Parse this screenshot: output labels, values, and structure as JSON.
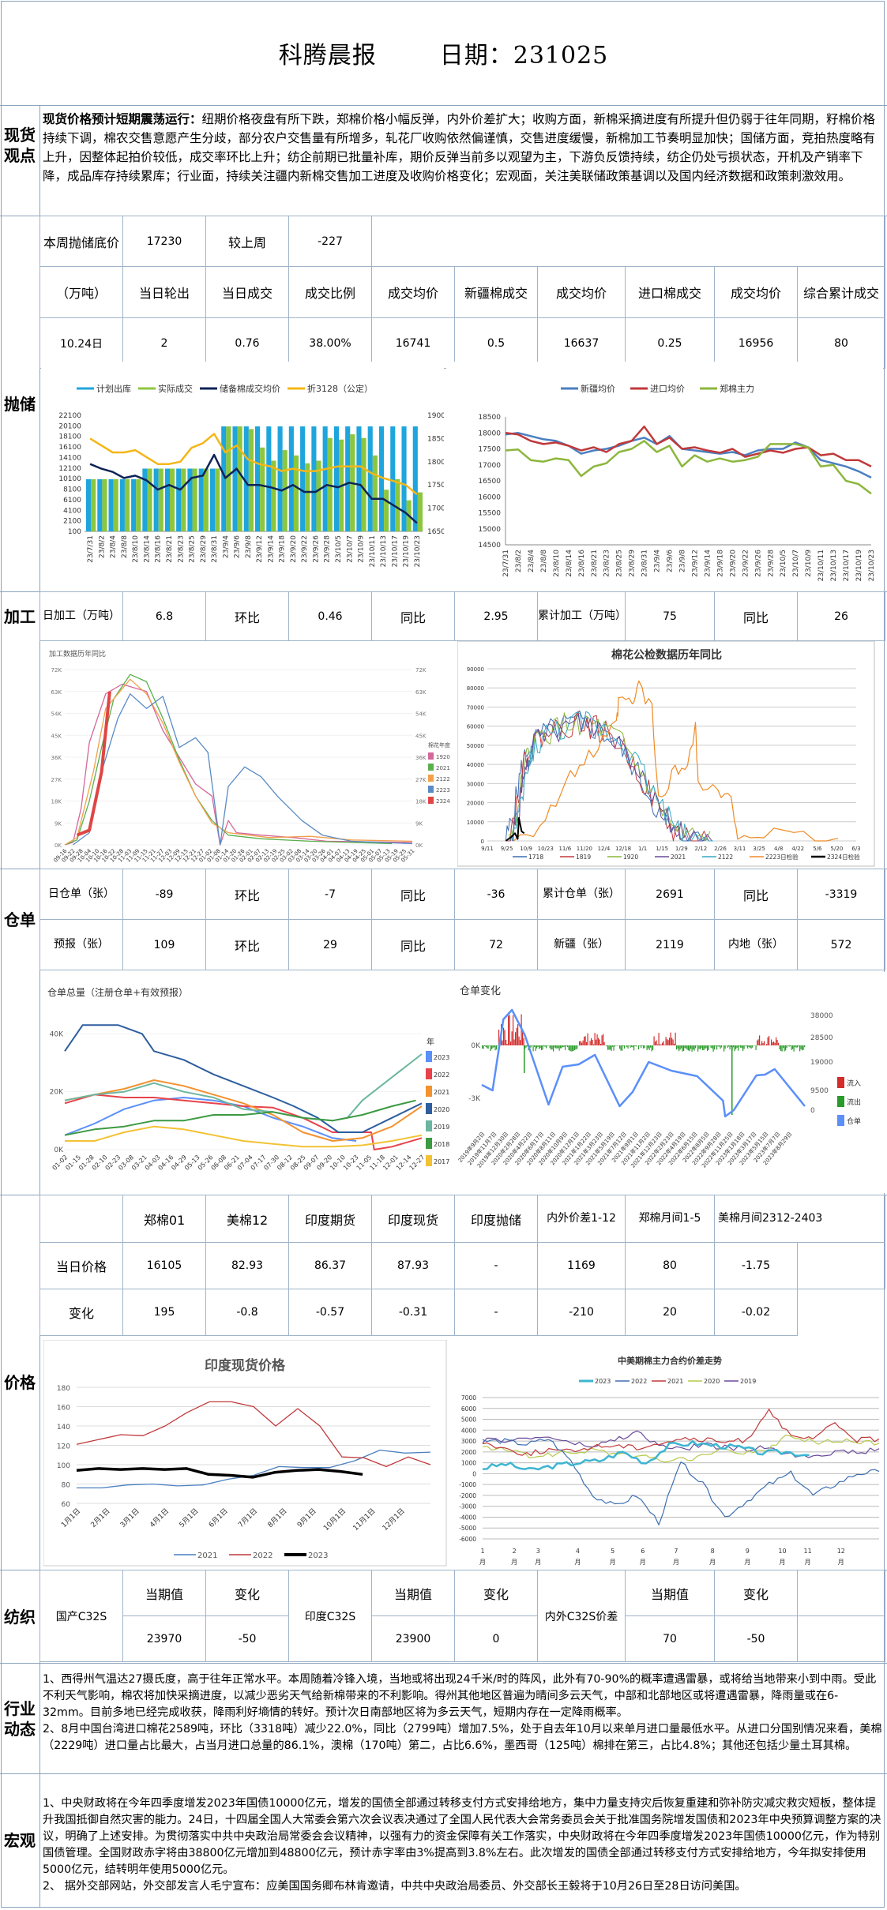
{
  "header": {
    "title": "科腾晨报",
    "date_label": "日期：231025"
  },
  "spot": {
    "label": "现货观点",
    "headline": "现货价格预计短期震荡运行：",
    "body": "纽期价格夜盘有所下跌，郑棉价格小幅反弹，内外价差扩大；收购方面，新棉采摘进度有所提升但仍弱于往年同期，籽棉价格持续下调，棉农交售意愿产生分歧，部分农户交售量有所增多，轧花厂收购依然偏谨慎，交售进度缓慢，新棉加工节奏明显加快；国储方面，竞拍热度略有上升，因整体起拍价较低，成交率环比上升；纺企前期已批量补库，期价反弹当前多以观望为主，下游负反馈持续，纺企仍处亏损状态，开机及产销率下降，成品库存持续累库；行业面，持续关注疆内新棉交售加工进度及收购价格变化；宏观面，关注美联储政策基调以及国内经济数据和政策刺激效用。"
  },
  "reserve": {
    "label": "抛储",
    "floor_label": "本周抛储底价",
    "floor_value": "17230",
    "vs_last_label": "较上周",
    "vs_last_value": "-227",
    "headers": [
      "（万吨）",
      "当日轮出",
      "当日成交",
      "成交比例",
      "成交均价",
      "新疆棉成交",
      "成交均价",
      "进口棉成交",
      "成交均价",
      "综合累计成交"
    ],
    "row": [
      "10.24日",
      "2",
      "0.76",
      "38.00%",
      "16741",
      "0.5",
      "16637",
      "0.25",
      "16956",
      "80"
    ]
  },
  "processing": {
    "label": "加工",
    "cells": [
      "日加工（万吨）",
      "6.8",
      "环比",
      "0.46",
      "同比",
      "2.95",
      "累计加工（万吨）",
      "75",
      "同比",
      "26"
    ]
  },
  "warehouse": {
    "label": "仓单",
    "row1": [
      "日仓单（张）",
      "-89",
      "环比",
      "-7",
      "同比",
      "-36",
      "累计仓单（张）",
      "2691",
      "同比",
      "-3319"
    ],
    "row2": [
      "预报（张）",
      "109",
      "环比",
      "29",
      "同比",
      "72",
      "新疆（张）",
      "2119",
      "内地（张）",
      "572"
    ]
  },
  "price": {
    "label": "价格",
    "headers": [
      "",
      "郑棉01",
      "美棉12",
      "印度期货",
      "印度现货",
      "印度抛储",
      "内外价差1-12",
      "郑棉月间1-5",
      "美棉月间2312-2403",
      ""
    ],
    "today": [
      "当日价格",
      "16105",
      "82.93",
      "86.37",
      "87.93",
      "-",
      "1169",
      "80",
      "-1.75",
      ""
    ],
    "change": [
      "变化",
      "195",
      "-0.8",
      "-0.57",
      "-0.31",
      "-",
      "-210",
      "20",
      "-0.02",
      ""
    ]
  },
  "textile": {
    "label": "纺织",
    "domestic": "国产C32S",
    "india": "印度C32S",
    "spread": "内外C32S价差",
    "cur_label": "当期值",
    "chg_label": "变化",
    "domestic_values": [
      "23970",
      "-50"
    ],
    "india_values": [
      "23900",
      "0"
    ],
    "spread_values": [
      "70",
      "-50"
    ]
  },
  "industry": {
    "label": "行业动态",
    "p1": "1、西得州气温达27摄氏度，高于往年正常水平。本周随着冷锋入境，当地或将出现24千米/时的阵风，此外有70-90%的概率遭遇雷暴，或将给当地带来小到中雨。受此不利天气影响，棉农将加快采摘进度，以减少恶劣天气给新棉带来的不利影响。得州其他地区普遍为晴间多云天气，中部和北部地区或将遭遇雷暴，降雨量或在6-32mm。目前多地已经完成收获，降雨利好墒情的转好。预计次日南部地区将为多云天气，短期内存在一定降雨概率。",
    "p2": "2、8月中国台湾进口棉花2589吨，环比（3318吨）减少22.0%，同比（2799吨）增加7.5%，处于自去年10月以来单月进口量最低水平。从进口分国别情况来看，美棉（2229吨）进口量占比最大，占当月进口总量的86.1%，澳棉（170吨）第二，占比6.6%，墨西哥（125吨）棉排在第三，占比4.8%；其他还包括少量土耳其棉。"
  },
  "macro": {
    "label": "宏观",
    "p1": "1、中央财政将在今年四季度增发2023年国债10000亿元，增发的国债全部通过转移支付方式安排给地方，集中力量支持灾后恢复重建和弥补防灾减灾救灾短板，整体提升我国抵御自然灾害的能力。24日，十四届全国人大常委会第六次会议表决通过了全国人民代表大会常务委员会关于批准国务院增发国债和2023年中央预算调整方案的决议，明确了上述安排。为贯彻落实中共中央政治局常委会会议精神，以强有力的资金保障有关工作落实，中央财政将在今年四季度增发2023年国债10000亿元，作为特别国债管理。全国财政赤字将由38800亿元增加到48800亿元，预计赤字率由3%提高到3.8%左右。此次增发的国债全部通过转移支付方式安排给地方，今年拟安排使用5000亿元，结转明年使用5000亿元。",
    "p2": "2、 据外交部网站，外交部发言人毛宁宣布：应美国国务卿布林肯邀请，中共中央政治局委员、外交部长王毅将于10月26日至28日访问美国。"
  },
  "chart_data": [
    {
      "id": "reserve-auction",
      "type": "bar",
      "legend": [
        "计划出库",
        "实际成交",
        "储备棉成交均价",
        "折3128（公定）"
      ],
      "colors": [
        "#1fa5dd",
        "#8cc63f",
        "#0d2357",
        "#f5b617"
      ],
      "categories": [
        "23/7/31",
        "23/8/2",
        "23/8/4",
        "23/8/8",
        "23/8/10",
        "23/8/14",
        "23/8/16",
        "23/8/21",
        "23/8/23",
        "23/8/25",
        "23/8/29",
        "23/8/31",
        "23/9/4",
        "23/9/6",
        "23/9/8",
        "23/9/12",
        "23/9/14",
        "23/9/18",
        "23/9/20",
        "23/9/22",
        "23/9/26",
        "23/9/28",
        "23/10/5",
        "23/10/7",
        "23/10/9",
        "23/10/11",
        "23/10/13",
        "23/10/17",
        "23/10/19",
        "23/10/23"
      ],
      "y_left_ticks": [
        "22100",
        "20100",
        "18100",
        "16100",
        "14100",
        "12100",
        "10100",
        "8100",
        "6100",
        "4100",
        "2100",
        "100"
      ],
      "y_right_ticks": [
        "19000",
        "18500",
        "18000",
        "17500",
        "17000",
        "16500"
      ],
      "ylim_left": [
        100,
        22100
      ],
      "ylim_right": [
        16500,
        19000
      ],
      "planned": [
        10000,
        10000,
        10000,
        10000,
        10000,
        12000,
        12000,
        12000,
        12000,
        12000,
        12000,
        12000,
        20000,
        20000,
        20000,
        20000,
        20000,
        20000,
        20000,
        20000,
        20000,
        20000,
        20000,
        20000,
        20000,
        20000,
        20000,
        20000,
        20000,
        20000
      ],
      "actual": [
        10000,
        10000,
        10000,
        10000,
        10000,
        12000,
        12000,
        12000,
        12000,
        12000,
        12000,
        12000,
        20000,
        20000,
        19500,
        16000,
        13500,
        15500,
        14500,
        13000,
        13500,
        17800,
        17500,
        18500,
        17800,
        14500,
        8000,
        10000,
        6000,
        7500
      ],
      "avg_price": [
        17950,
        17850,
        17780,
        17650,
        17700,
        17600,
        17400,
        17500,
        17400,
        17650,
        17700,
        18150,
        17650,
        17850,
        17500,
        17500,
        17450,
        17380,
        17500,
        17350,
        17350,
        17500,
        17450,
        17550,
        17500,
        17200,
        17200,
        17050,
        16900,
        16680
      ],
      "p3128": [
        18500,
        18350,
        18200,
        18200,
        18250,
        18100,
        17950,
        17950,
        18000,
        18300,
        18400,
        18600,
        18200,
        18350,
        18050,
        17950,
        17900,
        17800,
        17850,
        17800,
        17800,
        17850,
        17900,
        17900,
        17900,
        17750,
        17650,
        17580,
        17500,
        17300
      ]
    },
    {
      "id": "spot-prices",
      "type": "line",
      "legend": [
        "新疆均价",
        "进口均价",
        "郑棉主力"
      ],
      "colors": [
        "#4a7fc1",
        "#c0393b",
        "#8cb63c"
      ],
      "categories": [
        "23/7/31",
        "23/8/2",
        "23/8/4",
        "23/8/8",
        "23/8/10",
        "23/8/14",
        "23/8/16",
        "23/8/21",
        "23/8/23",
        "23/8/25",
        "23/8/29",
        "23/8/31",
        "23/9/4",
        "23/9/6",
        "23/9/8",
        "23/9/12",
        "23/9/14",
        "23/9/18",
        "23/9/20",
        "23/9/22",
        "23/9/26",
        "23/9/28",
        "23/10/5",
        "23/10/7",
        "23/10/9",
        "23/10/11",
        "23/10/13",
        "23/10/17",
        "23/10/19",
        "23/10/23"
      ],
      "y_ticks": [
        "18500",
        "18000",
        "17500",
        "17000",
        "16500",
        "16000",
        "15500",
        "15000",
        "14500"
      ],
      "ylim": [
        14500,
        18500
      ],
      "series": [
        {
          "name": "新疆均价",
          "values": [
            17950,
            18000,
            17900,
            17800,
            17750,
            17600,
            17350,
            17450,
            17500,
            17600,
            17750,
            17850,
            17650,
            17900,
            17500,
            17450,
            17400,
            17350,
            17400,
            17300,
            17450,
            17500,
            17500,
            17700,
            17550,
            17150,
            17050,
            16950,
            16800,
            16600
          ]
        },
        {
          "name": "进口均价",
          "values": [
            18000,
            17950,
            17750,
            17650,
            17700,
            17600,
            17450,
            17550,
            17400,
            17650,
            17750,
            18200,
            17650,
            17850,
            17500,
            17550,
            17450,
            17380,
            17500,
            17250,
            17350,
            17450,
            17380,
            17500,
            17550,
            17300,
            17350,
            17150,
            17150,
            16950
          ]
        },
        {
          "name": "郑棉主力",
          "values": [
            17450,
            17480,
            17150,
            17100,
            17200,
            17150,
            16650,
            16950,
            17050,
            17400,
            17500,
            17750,
            17400,
            17600,
            16950,
            17300,
            17100,
            17200,
            17100,
            17150,
            17250,
            17650,
            17650,
            17650,
            17550,
            16950,
            17000,
            16500,
            16400,
            16100
          ]
        }
      ]
    },
    {
      "id": "processing-history",
      "type": "line",
      "title": "加工数据历年同比",
      "legend_title": "棉花年度",
      "legend": [
        "1920",
        "2021",
        "2122",
        "2223",
        "2324"
      ],
      "colors": [
        "#d4679a",
        "#5ab04d",
        "#f2a04a",
        "#5b8bc4",
        "#e04545"
      ],
      "x_ticks": [
        "09-16",
        "09-22",
        "09-28",
        "10-04",
        "10-10",
        "10-16",
        "10-22",
        "10-28",
        "11-03",
        "11-09",
        "11-15",
        "11-21",
        "11-27",
        "12-03",
        "12-09",
        "12-15",
        "12-21",
        "12-27",
        "01-02",
        "01-08",
        "01-14",
        "01-20",
        "01-26",
        "02-01",
        "02-07",
        "02-13",
        "02-19",
        "02-25",
        "03-02",
        "03-08",
        "03-14",
        "03-20",
        "03-26",
        "04-01",
        "04-07",
        "04-13",
        "04-19",
        "04-25",
        "05-01",
        "05-07",
        "05-13",
        "05-19",
        "05-25",
        "05-31"
      ],
      "y_ticks": [
        "72K",
        "63K",
        "54K",
        "45K",
        "36K",
        "27K",
        "18K",
        "9K",
        "0K"
      ],
      "ylim": [
        0,
        72000
      ]
    },
    {
      "id": "inspection-history",
      "type": "line",
      "title": "棉花公检数据历年同比",
      "legend": [
        "1718",
        "1819",
        "1920",
        "2021",
        "2122",
        "2223日检验",
        "2324日检验"
      ],
      "colors": [
        "#3d6fb0",
        "#c0393b",
        "#8cb63c",
        "#6a4a9c",
        "#35a7c4",
        "#f08a24",
        "#000000"
      ],
      "x_ticks": [
        "9/11",
        "9/25",
        "10/9",
        "10/23",
        "11/6",
        "11/20",
        "12/4",
        "12/18",
        "1/1",
        "1/15",
        "1/29",
        "2/12",
        "2/26",
        "3/11",
        "3/25",
        "4/8",
        "4/22",
        "5/6",
        "5/20",
        "6/3"
      ],
      "y_ticks": [
        "90000",
        "80000",
        "70000",
        "60000",
        "50000",
        "40000",
        "30000",
        "20000",
        "10000",
        "0"
      ],
      "ylim": [
        0,
        90000
      ]
    },
    {
      "id": "warehouse-total",
      "type": "line",
      "title": "仓单总量（注册仓单+有效预报）",
      "legend_title": "年",
      "legend": [
        "2023",
        "2022",
        "2021",
        "2020",
        "2019",
        "2018",
        "2017"
      ],
      "colors": [
        "#5b8ff9",
        "#e8424a",
        "#f4922f",
        "#2e5e9e",
        "#6bb6a0",
        "#3c9a42",
        "#f2c234"
      ],
      "x_ticks": [
        "01-02",
        "01-15",
        "01-28",
        "02-10",
        "02-23",
        "03-08",
        "03-21",
        "04-03",
        "04-16",
        "04-29",
        "05-13",
        "05-26",
        "06-08",
        "06-21",
        "07-04",
        "07-17",
        "07-30",
        "08-12",
        "08-25",
        "09-07",
        "09-20",
        "10-10",
        "10-23",
        "11-05",
        "11-18",
        "12-01",
        "12-14",
        "12-27"
      ],
      "y_ticks": [
        "40K",
        "20K",
        "0K"
      ],
      "ylim": [
        0,
        45000
      ]
    },
    {
      "id": "warehouse-change",
      "type": "bar",
      "title": "仓单变化",
      "legend": [
        "流入",
        "流出",
        "仓单"
      ],
      "colors": [
        "#d42b2b",
        "#2a9a2a",
        "#5b8ff9"
      ],
      "y_left_ticks": [
        "0K",
        "-3K"
      ],
      "y_right_ticks": [
        "38000",
        "28500",
        "19000",
        "9500",
        "0"
      ],
      "x_ticks": [
        "2019年9月2日",
        "2019年11月7日",
        "2019年12月30日",
        "2020年2月28日",
        "2020年4月22日",
        "2020年6月17日",
        "2020年8月11日",
        "2020年10月9日",
        "2020年12月1日",
        "2021年1月22日",
        "2021年3月23日",
        "2021年5月19日",
        "2021年7月12日",
        "2021年9月1日",
        "2021年11月2日",
        "2021年12月23日",
        "2022年2月23日",
        "2022年4月19日",
        "2022年6月15日",
        "2022年8月5日",
        "2022年9月28日",
        "2022年11月25日",
        "2023年1月18日",
        "2023年3月17日",
        "2023年5月15日",
        "2023年7月7日",
        "2023年8月29日"
      ]
    },
    {
      "id": "india-spot",
      "type": "line",
      "title": "印度现货价格",
      "legend": [
        "2021",
        "2022",
        "2023"
      ],
      "colors": [
        "#4a7fc1",
        "#c0393b",
        "#000000"
      ],
      "x_ticks": [
        "1月1日",
        "2月1日",
        "3月1日",
        "4月1日",
        "5月1日",
        "6月1日",
        "7月1日",
        "8月1日",
        "9月1日",
        "10月1日",
        "11月1日",
        "12月1日"
      ],
      "y_ticks": [
        "180",
        "160",
        "140",
        "120",
        "100",
        "80",
        "60"
      ],
      "ylim": [
        60,
        180
      ],
      "series": [
        {
          "name": "2021",
          "values": [
            76,
            76,
            79,
            80,
            78,
            79,
            85,
            89,
            98,
            97,
            97,
            104,
            115,
            112,
            113
          ]
        },
        {
          "name": "2022",
          "values": [
            121,
            126,
            131,
            130,
            140,
            154,
            165,
            165,
            160,
            140,
            158,
            140,
            108,
            107,
            98,
            108,
            100
          ]
        },
        {
          "name": "2023",
          "values": [
            94,
            96,
            95,
            96,
            95,
            96,
            90,
            89,
            87,
            92,
            94,
            95,
            93,
            90
          ]
        }
      ]
    },
    {
      "id": "cn-us-spread",
      "type": "line",
      "title": "中美期棉主力合约价差走势",
      "legend": [
        "2023",
        "2022",
        "2021",
        "2020",
        "2019"
      ],
      "colors": [
        "#3db5d0",
        "#3d6fb0",
        "#c0393b",
        "#b5c84a",
        "#6a4a9c"
      ],
      "x_ticks": [
        "1\n月",
        "2\n月",
        "3\n月",
        "4\n月",
        "5\n月",
        "6\n月",
        "7\n月",
        "8\n月",
        "9\n月",
        "10\n月",
        "11\n月",
        "12\n月"
      ],
      "y_ticks": [
        "7000",
        "6000",
        "5000",
        "4000",
        "3000",
        "2000",
        "1000",
        "0",
        "-1000",
        "-2000",
        "-3000",
        "-4000",
        "-5000",
        "-6000"
      ],
      "ylim": [
        -6000,
        7000
      ],
      "series": [
        {
          "name": "2023",
          "values": [
            500,
            900,
            300,
            700,
            1000,
            1200,
            2000,
            1000,
            2600,
            2800,
            2600,
            2400,
            1900,
            2000,
            1700
          ]
        },
        {
          "name": "2022",
          "values": [
            3000,
            3000,
            2700,
            3200,
            1200,
            -2000,
            -3000,
            -2000,
            -4500,
            1000,
            -1000,
            -4000,
            -2500,
            -1000,
            0,
            -2000,
            -1000,
            0,
            200
          ]
        },
        {
          "name": "2021",
          "values": [
            2900,
            2300,
            1800,
            2200,
            2000,
            2500,
            2600,
            2400,
            2800,
            3200,
            3100,
            2900,
            3100,
            6000,
            3300,
            3200,
            4600,
            3100,
            3200
          ]
        },
        {
          "name": "2020",
          "values": [
            2400,
            2200,
            1600,
            1800,
            2000,
            2200,
            1700,
            1500,
            1200,
            1400,
            2100,
            2000,
            1900,
            3400,
            3000,
            2900,
            3000,
            2800
          ]
        },
        {
          "name": "2019",
          "values": [
            3000,
            3100,
            3200,
            3400,
            2800,
            2500,
            3100,
            3800,
            2600,
            2200,
            2700,
            2400,
            2200,
            2500,
            1700,
            1700,
            2000,
            1900,
            2300
          ]
        }
      ]
    }
  ]
}
